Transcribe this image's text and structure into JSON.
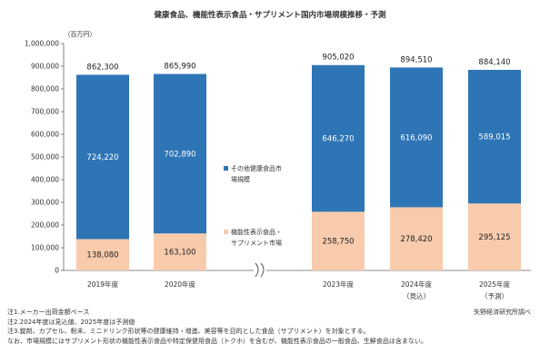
{
  "chart_data": {
    "type": "bar",
    "stacked": true,
    "title": "健康食品、機能性表示食品・サプリメント国内市場規模推移・予測",
    "unit_label": "（百万円）",
    "ylim": [
      0,
      1000000
    ],
    "yticks": [
      "0",
      "100,000",
      "200,000",
      "300,000",
      "400,000",
      "500,000",
      "600,000",
      "700,000",
      "800,000",
      "900,000",
      "1,000,000"
    ],
    "categories": [
      {
        "label": "2019年度",
        "sublabel": ""
      },
      {
        "label": "2020年度",
        "sublabel": ""
      },
      {
        "label": "2023年度",
        "sublabel": ""
      },
      {
        "label": "2024年度",
        "sublabel": "（見込）"
      },
      {
        "label": "2025年度",
        "sublabel": "（予測）"
      }
    ],
    "axis_break_between": [
      "2020年度",
      "2023年度"
    ],
    "series": [
      {
        "name": "機能性表示食品・サプリメント市場",
        "color": "#f8cbad",
        "values": [
          138080,
          163100,
          258750,
          278420,
          295125
        ],
        "value_labels": [
          "138,080",
          "163,100",
          "258,750",
          "278,420",
          "295,125"
        ]
      },
      {
        "name": "その他健康食品市場規模",
        "color": "#2e75b6",
        "values": [
          724220,
          702890,
          646270,
          616090,
          589015
        ],
        "value_labels": [
          "724,220",
          "702,890",
          "646,270",
          "616,090",
          "589,015"
        ]
      }
    ],
    "totals": [
      862300,
      865990,
      905020,
      894510,
      884140
    ],
    "total_labels": [
      "862,300",
      "865,990",
      "905,020",
      "894,510",
      "884,140"
    ],
    "legend": [
      {
        "lines": [
          "その他健康食品市",
          "場規模"
        ],
        "color": "#2e75b6"
      },
      {
        "lines": [
          "機能性表示食品・",
          "サプリメント市場"
        ],
        "color": "#f8cbad"
      }
    ],
    "grid": false
  },
  "notes": [
    "注1.メーカー出荷金額ベース",
    "注2.2024年度は見込値、2025年度は予測値",
    "注3.錠剤、カプセル、粉末、ミニドリンク形状等の健康維持・増進、美容等を目的とした食品（サプリメント）を対象とする。",
    "なお、市場規模にはサプリメント形状の機能性表示食品や特定保健用食品（トクホ）を含むが、機能性表示食品の一般食品、生鮮食品は含まない。"
  ],
  "source": "矢野経済研究所調べ"
}
